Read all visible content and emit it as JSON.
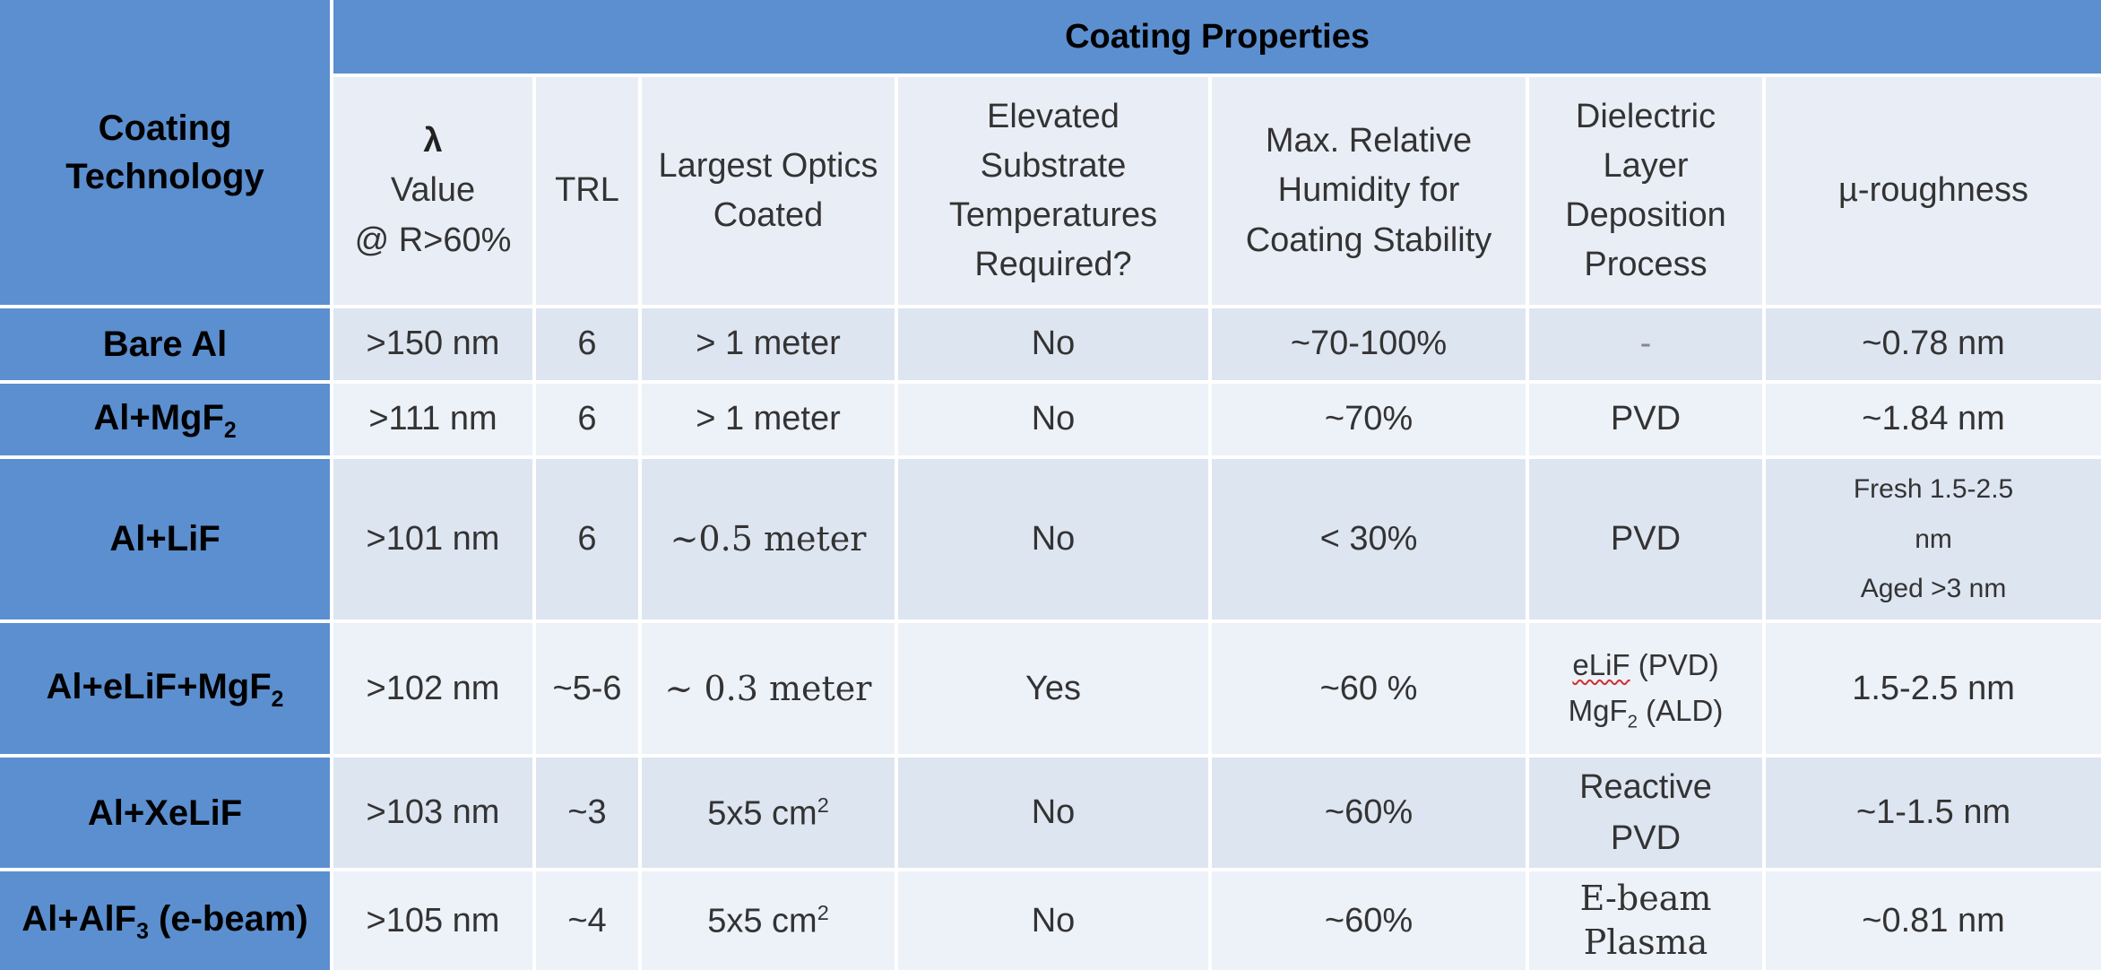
{
  "header": {
    "coating_technology": "Coating Technology",
    "coating_properties": "Coating Properties",
    "columns": {
      "lambda_symbol": "λ",
      "lambda_value": "Value",
      "lambda_condition": "@ R>60%",
      "trl": "TRL",
      "largest_optics": "Largest Optics Coated",
      "elevated_temp": "Elevated Substrate Temperatures Required?",
      "max_humidity": "Max. Relative Humidity for Coating Stability",
      "dielectric": "Dielectric Layer Deposition Process",
      "roughness": "µ-roughness"
    }
  },
  "rows": [
    {
      "tech": "Bare Al",
      "lambda": ">150 nm",
      "trl": "6",
      "optics": "> 1 meter",
      "elevated": "No",
      "humidity": "~70-100%",
      "dielectric": "-",
      "roughness": "~0.78 nm"
    },
    {
      "tech_main": "Al+MgF",
      "tech_sub": "2",
      "lambda": ">111 nm",
      "trl": "6",
      "optics": "> 1 meter",
      "elevated": "No",
      "humidity": "~70%",
      "dielectric": "PVD",
      "roughness": "~1.84 nm"
    },
    {
      "tech": "Al+LiF",
      "lambda": ">101 nm",
      "trl": "6",
      "optics": "~0.5 meter",
      "elevated": "No",
      "humidity": "< 30%",
      "dielectric": "PVD",
      "roughness_line1": "Fresh 1.5-2.5",
      "roughness_line2": "nm",
      "roughness_line3": "Aged >3 nm"
    },
    {
      "tech_main": "Al+eLiF+MgF",
      "tech_sub": "2",
      "lambda": ">102 nm",
      "trl": "~5-6",
      "optics": "~ 0.3 meter",
      "elevated": "Yes",
      "humidity": "~60 %",
      "dielectric_l1_a": "eLiF",
      "dielectric_l1_b": " (PVD)",
      "dielectric_l2_a": "MgF",
      "dielectric_l2_sub": "2",
      "dielectric_l2_b": " (ALD)",
      "roughness": "1.5-2.5 nm"
    },
    {
      "tech": "Al+XeLiF",
      "lambda": ">103 nm",
      "trl": "~3",
      "optics_main": "5x5 cm",
      "optics_sup": "2",
      "elevated": "No",
      "humidity": "~60%",
      "dielectric_line1": "Reactive",
      "dielectric_line2": "PVD",
      "roughness": "~1-1.5 nm"
    },
    {
      "tech_a": "Al+AlF",
      "tech_sub": "3",
      "tech_b": " (e-beam)",
      "lambda": ">105 nm",
      "trl": "~4",
      "optics_main": "5x5 cm",
      "optics_sup": "2",
      "elevated": "No",
      "humidity": "~60%",
      "dielectric_line1": "E-beam",
      "dielectric_line2": "Plasma",
      "roughness": "~0.81 nm"
    }
  ],
  "colors": {
    "header_blue": "#5b8fd0",
    "cell_dark": "#dde5f1",
    "cell_light": "#edf1f8",
    "spellcheck_underline": "#d03030"
  }
}
